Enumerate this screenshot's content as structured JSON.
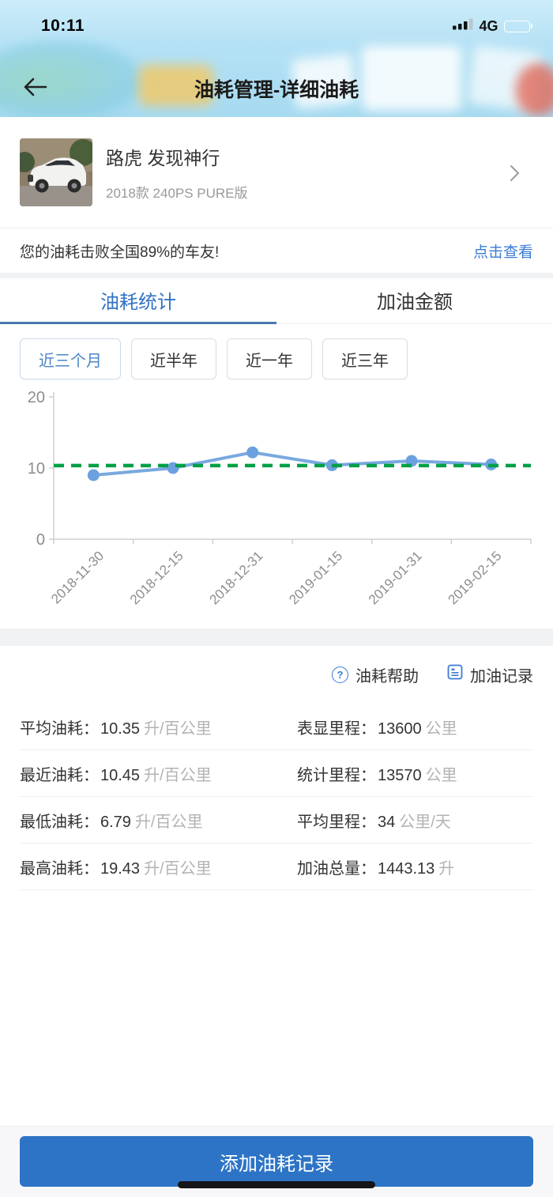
{
  "status_bar": {
    "time": "10:11",
    "network": "4G"
  },
  "header": {
    "title": "油耗管理-详细油耗"
  },
  "car": {
    "name": "路虎 发现神行",
    "trim": "2018款 240PS PURE版"
  },
  "beat_banner": {
    "text": "您的油耗击败全国89%的车友!",
    "link": "点击查看"
  },
  "tabs": [
    {
      "label": "油耗统计",
      "active": true
    },
    {
      "label": "加油金额",
      "active": false
    }
  ],
  "filters": {
    "options": [
      "近三个月",
      "近半年",
      "近一年",
      "近三年"
    ],
    "selected": "近三个月"
  },
  "chart_data": {
    "type": "line",
    "x": [
      "2018-11-30",
      "2018-12-15",
      "2018-12-31",
      "2019-01-15",
      "2019-01-31",
      "2019-02-15"
    ],
    "series": [
      {
        "name": "油耗",
        "values": [
          9.0,
          10.0,
          12.2,
          10.4,
          11.0,
          10.5
        ]
      }
    ],
    "average_line": 10.35,
    "ylim": [
      0,
      20
    ],
    "yticks": [
      0,
      10,
      20
    ],
    "grid": false,
    "legend": false,
    "line_color": "#79a8e0",
    "point_color": "#6ba1de",
    "average_line_color": "#00a046",
    "axis_color": "#cfcfcf",
    "label_color": "#8d8d8d"
  },
  "links": {
    "help": "油耗帮助",
    "records": "加油记录"
  },
  "stats": {
    "rows": [
      {
        "left": {
          "label": "平均油耗：",
          "value": "10.35",
          "unit": "升/百公里"
        },
        "right": {
          "label": "表显里程：",
          "value": "13600",
          "unit": "公里"
        }
      },
      {
        "left": {
          "label": "最近油耗：",
          "value": "10.45",
          "unit": "升/百公里"
        },
        "right": {
          "label": "统计里程：",
          "value": "13570",
          "unit": "公里"
        }
      },
      {
        "left": {
          "label": "最低油耗：",
          "value": "6.79",
          "unit": "升/百公里"
        },
        "right": {
          "label": "平均里程：",
          "value": "34",
          "unit": "公里/天"
        }
      },
      {
        "left": {
          "label": "最高油耗：",
          "value": "19.43",
          "unit": "升/百公里"
        },
        "right": {
          "label": "加油总量：",
          "value": "1443.13",
          "unit": "升"
        }
      }
    ]
  },
  "footer": {
    "add_button": "添加油耗记录"
  },
  "colors": {
    "accent_blue": "#3a7bd5",
    "button_blue": "#2d74c6",
    "tab_underline": "#4a78ad",
    "average_green": "#00a046"
  }
}
